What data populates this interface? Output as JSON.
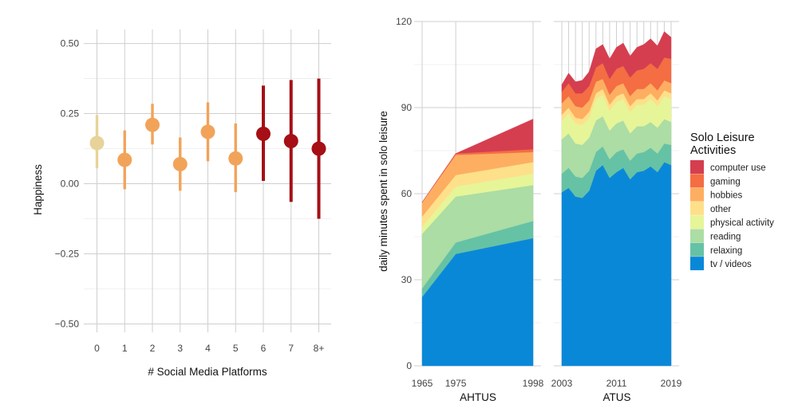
{
  "colors": {
    "grid_major": "#cfcfcf",
    "grid_minor": "#ececec",
    "background": "#ffffff"
  },
  "chart_data": [
    {
      "type": "scatter",
      "subtype": "point-range",
      "xlabel": "# Social Media Platforms",
      "ylabel": "Happiness",
      "ylim": [
        -0.53,
        0.55
      ],
      "yticks": [
        -0.5,
        -0.25,
        0.0,
        0.25,
        0.5
      ],
      "ytick_labels": [
        "−0.50",
        "−0.25",
        "0.00",
        "0.25",
        "0.50"
      ],
      "categories": [
        "0",
        "1",
        "2",
        "3",
        "4",
        "5",
        "6",
        "7",
        "8+"
      ],
      "estimates": [
        0.145,
        0.085,
        0.21,
        0.07,
        0.185,
        0.09,
        0.178,
        0.152,
        0.125
      ],
      "lower": [
        0.055,
        -0.02,
        0.14,
        -0.025,
        0.08,
        -0.03,
        0.01,
        -0.065,
        -0.125
      ],
      "upper": [
        0.245,
        0.19,
        0.285,
        0.165,
        0.29,
        0.215,
        0.35,
        0.37,
        0.375
      ],
      "colors": [
        "#e7d39a",
        "#f2a35a",
        "#f2a35a",
        "#f2a35a",
        "#f2a35a",
        "#f2a35a",
        "#a50f15",
        "#a50f15",
        "#a50f15"
      ],
      "grid": true
    },
    {
      "type": "area",
      "stacked": true,
      "ylabel": "daily minutes spent in solo leisure",
      "ylim": [
        0,
        120
      ],
      "yticks": [
        0,
        30,
        60,
        90,
        120
      ],
      "legend": {
        "title_lines": [
          "Solo Leisure",
          "Activities"
        ],
        "position": "right"
      },
      "series_order": [
        "tv / videos",
        "relaxing",
        "reading",
        "physical activity",
        "other",
        "hobbies",
        "gaming",
        "computer use"
      ],
      "series_colors": {
        "computer use": "#d53e4f",
        "gaming": "#f46d43",
        "hobbies": "#fdae61",
        "other": "#fee08b",
        "physical activity": "#e6f598",
        "reading": "#abdda4",
        "relaxing": "#66c2a5",
        "tv / videos": "#0a88d8"
      },
      "panels": [
        {
          "label": "AHTUS",
          "xlim": [
            1965,
            1998
          ],
          "xticks": [
            1965,
            1975,
            1998
          ],
          "x": [
            1965,
            1975,
            1998
          ],
          "series": [
            {
              "name": "tv / videos",
              "values": [
                24,
                39,
                44.5
              ]
            },
            {
              "name": "relaxing",
              "values": [
                3,
                4,
                6
              ]
            },
            {
              "name": "reading",
              "values": [
                19,
                16,
                12.5
              ]
            },
            {
              "name": "physical activity",
              "values": [
                2.5,
                3.5,
                4
              ]
            },
            {
              "name": "other",
              "values": [
                3.5,
                4,
                4
              ]
            },
            {
              "name": "hobbies",
              "values": [
                5,
                7,
                3.5
              ]
            },
            {
              "name": "gaming",
              "values": [
                0,
                0.5,
                1
              ]
            },
            {
              "name": "computer use",
              "values": [
                0,
                0,
                10.5
              ]
            }
          ]
        },
        {
          "label": "ATUS",
          "xlim": [
            2003,
            2019
          ],
          "xticks": [
            2003,
            2011,
            2019
          ],
          "x": [
            2003,
            2004,
            2005,
            2006,
            2007,
            2008,
            2009,
            2010,
            2011,
            2012,
            2013,
            2014,
            2015,
            2016,
            2017,
            2018,
            2019
          ],
          "series": [
            {
              "name": "tv / videos",
              "values": [
                60.5,
                62,
                59,
                58.5,
                61,
                68,
                70,
                65.5,
                67.5,
                69,
                65,
                67.5,
                68,
                69.5,
                67.5,
                71,
                70
              ]
            },
            {
              "name": "relaxing",
              "values": [
                6.5,
                7,
                7,
                7,
                7,
                6.5,
                6.5,
                6.5,
                7,
                6.5,
                6.5,
                6.5,
                6.5,
                6.5,
                6.5,
                6.5,
                7
              ]
            },
            {
              "name": "reading",
              "values": [
                12,
                12,
                11.5,
                11.5,
                11.5,
                11,
                10.5,
                10,
                10,
                10,
                9.5,
                9.5,
                9,
                9,
                9,
                8.5,
                8
              ]
            },
            {
              "name": "physical activity",
              "values": [
                6.5,
                7,
                7,
                7,
                7,
                7.5,
                7.5,
                7,
                7.5,
                7.5,
                7.5,
                7.5,
                7.5,
                8,
                7.5,
                8,
                8
              ]
            },
            {
              "name": "other",
              "values": [
                2,
                2,
                2,
                2,
                2,
                2,
                2,
                2,
                2,
                2,
                2,
                2,
                2,
                2,
                2,
                2,
                2
              ]
            },
            {
              "name": "hobbies",
              "values": [
                4,
                4,
                4,
                4,
                4,
                4,
                3.5,
                3.5,
                3.5,
                3.5,
                3.5,
                3.5,
                3.5,
                3.5,
                3.5,
                3.5,
                3.5
              ]
            },
            {
              "name": "gaming",
              "values": [
                4,
                4.5,
                4.5,
                5,
                5,
                5,
                5.5,
                5.5,
                6,
                6,
                6.5,
                6.5,
                7,
                7,
                7.5,
                8,
                8.5
              ]
            },
            {
              "name": "computer use",
              "values": [
                2.5,
                3.5,
                4,
                4.5,
                5,
                6.5,
                6.5,
                7,
                7.5,
                8,
                7.5,
                8,
                8.5,
                8.5,
                8,
                9,
                7.5
              ]
            }
          ]
        }
      ]
    }
  ]
}
